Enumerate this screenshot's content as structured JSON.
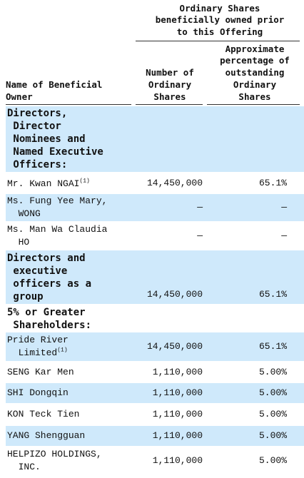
{
  "header": {
    "group_title_line1": "Ordinary Shares",
    "group_title_line2": "beneficially owned prior",
    "group_title_line3": "to this Offering",
    "col_name_line1": "Name of Beneficial",
    "col_name_line2": "Owner",
    "col_number_line1": "Number of",
    "col_number_line2": "Ordinary",
    "col_number_line3": "Shares",
    "col_pct_line1": "Approximate",
    "col_pct_line2": "percentage of",
    "col_pct_line3": "outstanding",
    "col_pct_line4": "Ordinary",
    "col_pct_line5": "Shares"
  },
  "rows": [
    {
      "lines": [
        "Directors,",
        " Director",
        " Nominees and",
        " Named Executive",
        " Officers:"
      ],
      "number": "",
      "percent": "",
      "bold": true
    },
    {
      "lines": [
        "Mr. Kwan NGAI"
      ],
      "sup": "(1)",
      "number": "14,450,000",
      "percent": "65.1%"
    },
    {
      "lines": [
        "Ms. Fung Yee Mary,",
        "  WONG"
      ],
      "number": "—",
      "percent": "—"
    },
    {
      "lines": [
        "Ms. Man Wa Claudia",
        "  HO"
      ],
      "number": "—",
      "percent": "—"
    },
    {
      "lines": [
        "Directors and",
        " executive",
        " officers as a",
        " group"
      ],
      "number": "14,450,000",
      "percent": "65.1%",
      "bold": true
    },
    {
      "lines": [
        "5% or Greater",
        " Shareholders:"
      ],
      "number": "",
      "percent": "",
      "bold": true
    },
    {
      "lines": [
        "Pride River",
        "  Limited"
      ],
      "sup": "(1)",
      "number": "14,450,000",
      "percent": "65.1%"
    },
    {
      "lines": [
        "SENG Kar Men"
      ],
      "number": "1,110,000",
      "percent": "5.00%"
    },
    {
      "lines": [
        "SHI Dongqin"
      ],
      "number": "1,110,000",
      "percent": "5.00%"
    },
    {
      "lines": [
        "KON Teck Tien"
      ],
      "number": "1,110,000",
      "percent": "5.00%"
    },
    {
      "lines": [
        "YANG Shengguan"
      ],
      "number": "1,110,000",
      "percent": "5.00%"
    },
    {
      "lines": [
        "HELPIZO HOLDINGS,",
        "  INC."
      ],
      "number": "1,110,000",
      "percent": "5.00%"
    }
  ]
}
